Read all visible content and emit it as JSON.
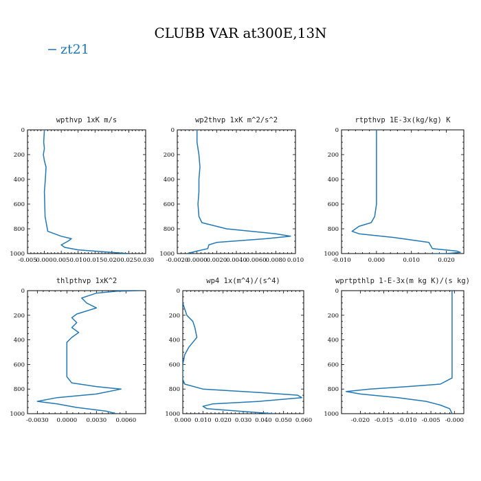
{
  "figure": {
    "title": "CLUBB VAR at300E,13N",
    "legend": [
      {
        "label": "zt21",
        "marker": "−"
      }
    ],
    "line_color": "#1f77b4"
  },
  "chart_data": [
    {
      "type": "line",
      "title": "wpthvp  1xK m/s",
      "xlim": [
        -0.005,
        0.03
      ],
      "ylim": [
        1000,
        0
      ],
      "xticks": [
        "-0.005",
        "0.000",
        "0.005",
        "0.010",
        "0.015",
        "0.020",
        "0.025",
        "0.030"
      ],
      "yticks": [
        "0",
        "200",
        "400",
        "600",
        "800",
        "1000"
      ],
      "series": [
        {
          "x": [
            0.0,
            -0.0002,
            0.0,
            -0.0003,
            0.0,
            0.0005,
            0.0003,
            0.0,
            0.0002,
            0.001,
            0.005,
            0.008,
            0.007,
            0.005,
            0.006,
            0.01,
            0.017,
            0.025
          ],
          "y": [
            0,
            100,
            150,
            200,
            250,
            300,
            400,
            500,
            700,
            820,
            860,
            880,
            900,
            930,
            950,
            970,
            985,
            1000
          ]
        }
      ]
    },
    {
      "type": "line",
      "title": "wp2thvp  1xK m^2/s^2",
      "xlim": [
        -0.002,
        0.01
      ],
      "ylim": [
        1000,
        0
      ],
      "xticks": [
        "-0.0020",
        "0.0000",
        "0.0020",
        "0.0040",
        "0.0060",
        "0.0080",
        "0.010"
      ],
      "yticks": [
        "0",
        "200",
        "400",
        "600",
        "800",
        "1000"
      ],
      "series": [
        {
          "x": [
            0.0,
            0.0,
            0.0002,
            0.0003,
            0.0002,
            0.0002,
            0.0001,
            0.0002,
            0.0005,
            0.003,
            0.008,
            0.0095,
            0.007,
            0.002,
            0.0012,
            0.0011,
            0.0,
            -0.001
          ],
          "y": [
            0,
            100,
            200,
            300,
            400,
            500,
            600,
            700,
            750,
            800,
            840,
            860,
            880,
            910,
            930,
            960,
            980,
            1000
          ]
        }
      ]
    },
    {
      "type": "line",
      "title": "rtpthvp  1E-3x(kg/kg) K",
      "xlim": [
        -0.01,
        0.025
      ],
      "ylim": [
        1000,
        0
      ],
      "xticks": [
        "-0.010",
        "0.000",
        "0.010",
        "0.020"
      ],
      "yticks": [
        "0",
        "200",
        "400",
        "600",
        "800",
        "1000"
      ],
      "series": [
        {
          "x": [
            0.0,
            0.0,
            0.0,
            0.0,
            0.0,
            -0.0005,
            -0.0015,
            -0.005,
            -0.007,
            -0.005,
            0.005,
            0.015,
            0.016,
            0.023,
            0.024,
            0.02,
            0.016
          ],
          "y": [
            0,
            100,
            200,
            400,
            600,
            700,
            750,
            780,
            820,
            840,
            870,
            910,
            960,
            980,
            990,
            1000,
            1000
          ]
        }
      ]
    },
    {
      "type": "line",
      "title": "thlpthvp  1xK^2",
      "xlim": [
        -0.004,
        0.008
      ],
      "ylim": [
        1000,
        0
      ],
      "xticks": [
        "-0.0030",
        "0.0000",
        "0.0030",
        "0.0060"
      ],
      "yticks": [
        "0",
        "200",
        "400",
        "600",
        "800",
        "1000"
      ],
      "series": [
        {
          "x": [
            0.0075,
            0.005,
            0.003,
            0.0015,
            0.002,
            0.003,
            0.001,
            0.0005,
            0.001,
            0.0005,
            0.0012,
            0.0005,
            0.0,
            0.0,
            0.0,
            0.0,
            0.0005,
            0.003,
            0.0055,
            0.003,
            -0.001,
            -0.003,
            -0.001,
            0.001,
            0.004,
            0.005
          ],
          "y": [
            0,
            5,
            20,
            60,
            100,
            140,
            190,
            220,
            260,
            300,
            340,
            380,
            420,
            500,
            600,
            700,
            750,
            780,
            800,
            840,
            870,
            900,
            920,
            950,
            980,
            1000
          ]
        }
      ]
    },
    {
      "type": "line",
      "title": "wp4  1x(m^4)/(s^4)",
      "xlim": [
        0.0,
        0.06
      ],
      "ylim": [
        1000,
        0
      ],
      "xticks": [
        "0.000",
        "0.010",
        "0.020",
        "0.030",
        "0.040",
        "0.050",
        "0.060"
      ],
      "yticks": [
        "0",
        "200",
        "400",
        "600",
        "800",
        "1000"
      ],
      "series": [
        {
          "x": [
            0.0,
            0.001,
            0.002,
            0.005,
            0.006,
            0.007,
            0.005,
            0.003,
            0.001,
            0.0,
            0.0,
            0.001,
            0.01,
            0.04,
            0.057,
            0.059,
            0.038,
            0.015,
            0.01,
            0.012,
            0.028,
            0.045
          ],
          "y": [
            100,
            150,
            200,
            250,
            300,
            380,
            420,
            460,
            520,
            600,
            720,
            760,
            800,
            830,
            850,
            870,
            900,
            920,
            940,
            960,
            980,
            1000
          ]
        }
      ]
    },
    {
      "type": "line",
      "title": "wprtpthlp  1-E-3x(m kg K)/(s kg)",
      "xlim": [
        -0.024,
        0.002
      ],
      "ylim": [
        1000,
        0
      ],
      "xticks": [
        "-0.020",
        "-0.015",
        "-0.010",
        "-0.005",
        "-0.000"
      ],
      "yticks": [
        "0",
        "200",
        "400",
        "600",
        "800",
        "1000"
      ],
      "series": [
        {
          "x": [
            -0.0005,
            -0.0005,
            -0.0005,
            -0.0005,
            -0.0005,
            -0.0005,
            -0.003,
            -0.01,
            -0.018,
            -0.023,
            -0.02,
            -0.012,
            -0.006,
            -0.003,
            -0.001,
            -0.0005
          ],
          "y": [
            0,
            200,
            400,
            600,
            690,
            710,
            760,
            780,
            800,
            820,
            840,
            870,
            900,
            930,
            960,
            1000
          ]
        }
      ]
    }
  ]
}
